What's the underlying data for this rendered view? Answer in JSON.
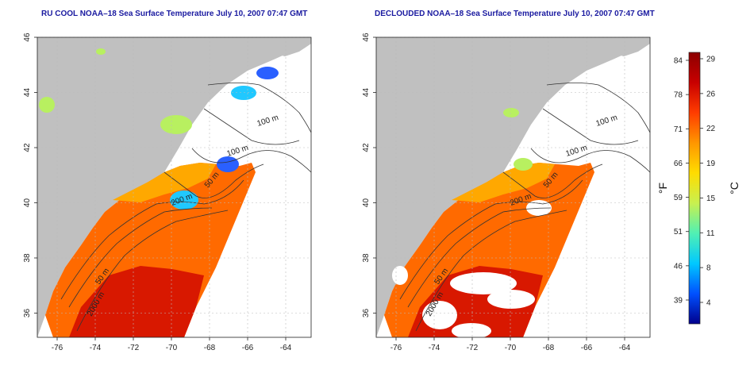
{
  "panels": [
    {
      "title": "RU COOL NOAA–18 Sea Surface Temperature July 10, 2007 07:47 GMT",
      "clouds_masked": false
    },
    {
      "title": "DECLOUDED NOAA–18 Sea Surface Temperature July 10, 2007 07:47 GMT",
      "clouds_masked": true
    }
  ],
  "map": {
    "x_ticks": [
      "-76",
      "-74",
      "-72",
      "-70",
      "-68",
      "-66",
      "-64"
    ],
    "y_ticks": [
      "46",
      "44",
      "42",
      "40",
      "38",
      "36"
    ],
    "contour_labels": [
      "100 m",
      "100 m",
      "50 m",
      "200 m",
      "50 m",
      "2000 m"
    ],
    "colors": {
      "land": "#c0c0c0",
      "no_data": "#ffffff",
      "contour": "#333333",
      "grid": "#bbbbbb"
    }
  },
  "colorbar": {
    "f_ticks": [
      "84",
      "78",
      "71",
      "66",
      "59",
      "51",
      "46",
      "39"
    ],
    "c_ticks": [
      "29",
      "26",
      "22",
      "19",
      "15",
      "11",
      "8",
      "4"
    ],
    "f_unit": "°F",
    "c_unit": "°C",
    "colors": [
      "#00008c",
      "#0050ff",
      "#00c8ff",
      "#50f0b4",
      "#c8f050",
      "#ffdc00",
      "#ff9600",
      "#ff3c00",
      "#c80000",
      "#8c0000"
    ]
  }
}
